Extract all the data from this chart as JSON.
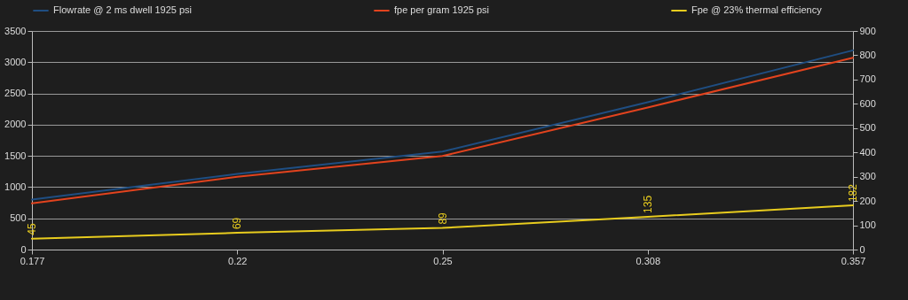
{
  "chart_data": {
    "type": "line",
    "categories": [
      "0.177",
      "0.22",
      "0.25",
      "0.308",
      "0.357"
    ],
    "series": [
      {
        "name": "Flowrate @ 2 ms dwell 1925 psi",
        "color": "#1f4e82",
        "values": [
          800,
          1210,
          1570,
          2360,
          3190
        ]
      },
      {
        "name": "fpe per gram 1925 psi",
        "color": "#e2431e",
        "axis": "y2",
        "values": [
          190,
          300,
          385,
          585,
          790
        ]
      },
      {
        "name": "Fpe @ 23% thermal efficiency",
        "color": "#e8cc1e",
        "axis": "y2",
        "values": [
          45,
          69,
          89,
          135,
          182
        ],
        "value_labels": [
          "45",
          "69",
          "89",
          "135",
          "182"
        ]
      }
    ],
    "ylim": [
      0,
      3500
    ],
    "yticks": [
      0,
      500,
      1000,
      1500,
      2000,
      2500,
      3000,
      3500
    ],
    "y2lim": [
      0,
      900
    ],
    "y2ticks": [
      0,
      100,
      200,
      300,
      400,
      500,
      600,
      700,
      800,
      900
    ],
    "grid": "y",
    "legend": "top"
  }
}
